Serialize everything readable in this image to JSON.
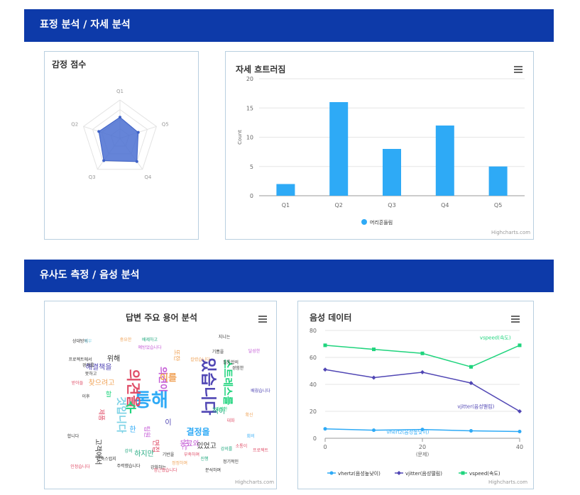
{
  "sections": {
    "expression": {
      "title": "표정 분석 / 자세 분석"
    },
    "similarity": {
      "title": "유사도 측정 / 음성 분석"
    }
  },
  "credit_text": "Highcharts.com",
  "colors": {
    "header_bg": "#0d3aa9",
    "radar_fill": "#4a6fd1",
    "bar": "#2eaaf6",
    "vhertz": "#2eaaf6",
    "vjitter": "#5046b4",
    "vspeed": "#1fd47d"
  },
  "emotion_panel": {
    "title": "감정 점수"
  },
  "posture_panel": {
    "title": "자세 흐트러짐"
  },
  "wordcloud_panel": {
    "title": "답변 주요 용어 분석"
  },
  "voice_panel": {
    "title": "음성 데이터"
  },
  "chart_data": [
    {
      "type": "radar",
      "categories": [
        "Q1",
        "Q5",
        "Q4",
        "Q3",
        "Q2"
      ],
      "values": [
        0.55,
        0.5,
        0.75,
        0.72,
        0.58
      ],
      "ylim": [
        0,
        1
      ],
      "grid": true
    },
    {
      "type": "bar",
      "categories": [
        "Q1",
        "Q2",
        "Q3",
        "Q4",
        "Q5"
      ],
      "series": [
        {
          "name": "머리흔들림",
          "values": [
            2,
            16,
            8,
            12,
            5
          ]
        }
      ],
      "ylabel": "Count",
      "ylim": [
        0,
        20
      ],
      "yticks": [
        0,
        5,
        10,
        15,
        20
      ],
      "legend": "bottom-center",
      "grid": true
    },
    {
      "type": "line",
      "x": [
        0,
        10,
        20,
        30,
        40
      ],
      "xticks": [
        0,
        20,
        40
      ],
      "xlabel": "(문제)",
      "ylim": [
        0,
        80
      ],
      "yticks": [
        0,
        20,
        40,
        60,
        80
      ],
      "series": [
        {
          "name": "vhertz(음성높낮이)",
          "values": [
            7,
            6,
            6.5,
            5.5,
            5
          ]
        },
        {
          "name": "vjitter(음성떨림)",
          "values": [
            51,
            45,
            49,
            41,
            20
          ]
        },
        {
          "name": "vspeed(속도)",
          "values": [
            69,
            66,
            63,
            53,
            69
          ]
        }
      ],
      "legend": "bottom-center",
      "grid": true
    }
  ],
  "wordcloud": [
    {
      "text": "통해",
      "color": "#2eaaf6",
      "size": 26,
      "rot": 0
    },
    {
      "text": "있습니다",
      "color": "#5046b4",
      "size": 22,
      "rot": 90
    },
    {
      "text": "의견을",
      "color": "#e04e68",
      "size": 20,
      "rot": 90
    },
    {
      "text": "스트레스를",
      "color": "#1fd47d",
      "size": 14,
      "rot": 90
    },
    {
      "text": "수",
      "color": "#1fd47d",
      "size": 18,
      "rot": 0
    },
    {
      "text": "의견이",
      "color": "#c45bd6",
      "size": 13,
      "rot": 90
    },
    {
      "text": "이를",
      "color": "#f0a45a",
      "size": 13,
      "rot": 0
    },
    {
      "text": "것입니다",
      "color": "#7fd3e6",
      "size": 14,
      "rot": 90
    },
    {
      "text": "결정을",
      "color": "#2eaaf6",
      "size": 12,
      "rot": 0
    },
    {
      "text": "해결책을",
      "color": "#5046b4",
      "size": 10,
      "rot": 0
    },
    {
      "text": "찾으려고",
      "color": "#f0a45a",
      "size": 10,
      "rot": 0
    },
    {
      "text": "적이",
      "color": "#1fa87e",
      "size": 10,
      "rot": 0
    },
    {
      "text": "고객에서",
      "color": "#333333",
      "size": 10,
      "rot": 90
    },
    {
      "text": "동료와",
      "color": "#c45bd6",
      "size": 10,
      "rot": 0
    },
    {
      "text": "있었고",
      "color": "#333333",
      "size": 10,
      "rot": 0
    },
    {
      "text": "하지만",
      "color": "#1fa87e",
      "size": 10,
      "rot": 0
    },
    {
      "text": "위해",
      "color": "#333333",
      "size": 10,
      "rot": 0
    },
    {
      "text": "한",
      "color": "#2eaaf6",
      "size": 10,
      "rot": 0
    },
    {
      "text": "이",
      "color": "#5046b4",
      "size": 10,
      "rot": 0
    },
    {
      "text": "면접",
      "color": "#e04e68",
      "size": 10,
      "rot": 90
    },
    {
      "text": "팀원",
      "color": "#c45bd6",
      "size": 9,
      "rot": 90
    },
    {
      "text": "저는",
      "color": "#c45bd6",
      "size": 9,
      "rot": 90
    },
    {
      "text": "또한",
      "color": "#f0a45a",
      "size": 9,
      "rot": 90
    },
    {
      "text": "할",
      "color": "#1fd47d",
      "size": 9,
      "rot": 0
    },
    {
      "text": "제품",
      "color": "#e04e68",
      "size": 9,
      "rot": 90
    },
    {
      "text": "상대방의",
      "color": "#333333",
      "size": 6,
      "rot": 0
    },
    {
      "text": "중요한",
      "color": "#f0a45a",
      "size": 6,
      "rot": 0
    },
    {
      "text": "배제하고",
      "color": "#1fa87e",
      "size": 6,
      "rot": 0
    },
    {
      "text": "지니는",
      "color": "#333333",
      "size": 6,
      "rot": 0
    },
    {
      "text": "프로젝트에서",
      "color": "#333333",
      "size": 6,
      "rot": 0
    },
    {
      "text": "예방었습니다",
      "color": "#c45bd6",
      "size": 6,
      "rot": 0
    },
    {
      "text": "경과를",
      "color": "#333333",
      "size": 6,
      "rot": 0
    },
    {
      "text": "못하고",
      "color": "#333333",
      "size": 6,
      "rot": 0
    },
    {
      "text": "받아들",
      "color": "#e04e68",
      "size": 6,
      "rot": 0
    },
    {
      "text": "이후",
      "color": "#333333",
      "size": 6,
      "rot": 0
    },
    {
      "text": "강의",
      "color": "#1fa87e",
      "size": 6,
      "rot": 0
    },
    {
      "text": "안축스럽지",
      "color": "#333333",
      "size": 6,
      "rot": 0
    },
    {
      "text": "주력했습니다",
      "color": "#333333",
      "size": 6,
      "rot": 0
    },
    {
      "text": "기반을",
      "color": "#333333",
      "size": 6,
      "rot": 0
    },
    {
      "text": "부족하며",
      "color": "#e04e68",
      "size": 6,
      "rot": 0
    },
    {
      "text": "강화하는",
      "color": "#333333",
      "size": 6,
      "rot": 0
    },
    {
      "text": "정정하며",
      "color": "#f0a45a",
      "size": 6,
      "rot": 0
    },
    {
      "text": "정근했습니다",
      "color": "#e04e68",
      "size": 6,
      "rot": 0
    },
    {
      "text": "분석하며",
      "color": "#333333",
      "size": 6,
      "rot": 0
    },
    {
      "text": "정기적인",
      "color": "#333333",
      "size": 6,
      "rot": 0
    },
    {
      "text": "진행",
      "color": "#1fa87e",
      "size": 6,
      "rot": 0
    },
    {
      "text": "합니다",
      "color": "#333333",
      "size": 6,
      "rot": 0
    },
    {
      "text": "인정습니다",
      "color": "#e04e68",
      "size": 6,
      "rot": 0
    },
    {
      "text": "필통합의",
      "color": "#333333",
      "size": 6,
      "rot": 0
    },
    {
      "text": "칼렸습니다",
      "color": "#f0a45a",
      "size": 6,
      "rot": 0
    },
    {
      "text": "경험한",
      "color": "#333333",
      "size": 6,
      "rot": 0
    },
    {
      "text": "강렬한",
      "color": "#1fd47d",
      "size": 6,
      "rot": 0
    },
    {
      "text": "대화",
      "color": "#e04e68",
      "size": 6,
      "rot": 0
    },
    {
      "text": "확신",
      "color": "#f0a45a",
      "size": 6,
      "rot": 0
    },
    {
      "text": "회의",
      "color": "#2eaaf6",
      "size": 6,
      "rot": 0
    },
    {
      "text": "강의를",
      "color": "#1fa87e",
      "size": 6,
      "rot": 0
    },
    {
      "text": "소통이",
      "color": "#e04e68",
      "size": 6,
      "rot": 0
    },
    {
      "text": "배웠습니다",
      "color": "#5046b4",
      "size": 6,
      "rot": 0
    },
    {
      "text": "달성한",
      "color": "#c45bd6",
      "size": 6,
      "rot": 0
    },
    {
      "text": "기쁨을",
      "color": "#333333",
      "size": 6,
      "rot": 0
    },
    {
      "text": "경우",
      "color": "#7fd3e6",
      "size": 6,
      "rot": 0
    },
    {
      "text": "프로젝트",
      "color": "#e04e68",
      "size": 6,
      "rot": 0
    }
  ]
}
